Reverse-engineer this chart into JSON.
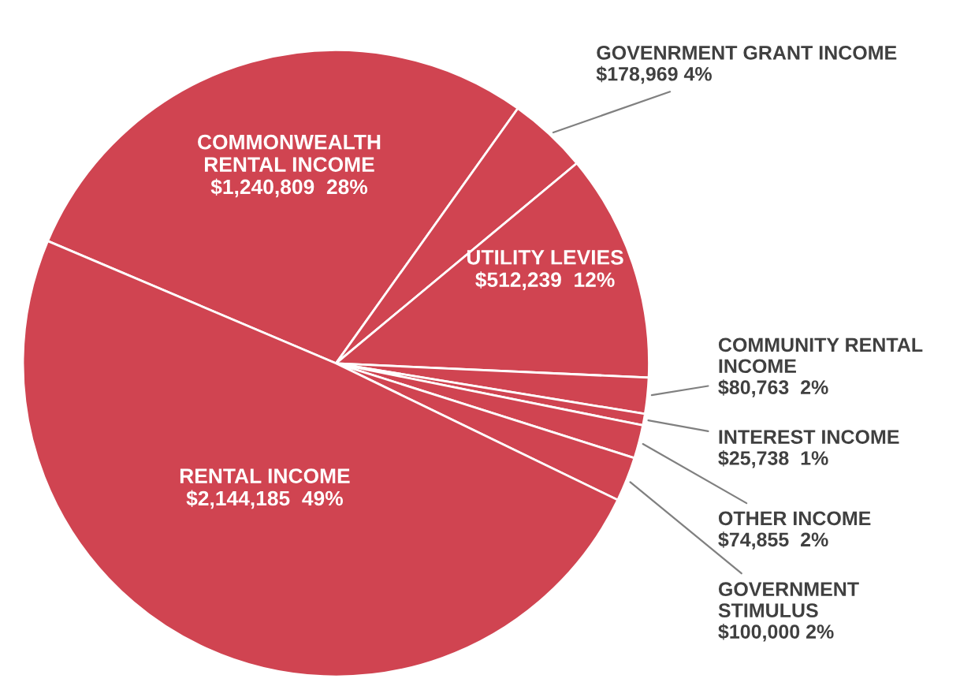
{
  "chart_data": {
    "type": "pie",
    "categories": [
      "COMMONWEALTH\nRENTAL INCOME",
      "GOVENRMENT GRANT INCOME",
      "UTILITY LEVIES",
      "COMMUNITY RENTAL\nINCOME",
      "INTEREST INCOME",
      "OTHER INCOME",
      "GOVERNMENT\nSTIMULUS",
      "RENTAL INCOME"
    ],
    "values": [
      1240809,
      178969,
      512239,
      80763,
      25738,
      74855,
      100000,
      2144185
    ],
    "value_labels": [
      "$1,240,809  28%",
      "$178,969 4%",
      "$512,239  12%",
      "$80,763  2%",
      "$25,738  1%",
      "$74,855  2%",
      "$100,000 2%",
      "$2,144,185  49%"
    ],
    "colors": [
      "#d04451",
      "#d04451",
      "#d04451",
      "#d04451",
      "#d04451",
      "#d04451",
      "#d04451",
      "#d04451"
    ],
    "legend": false
  }
}
